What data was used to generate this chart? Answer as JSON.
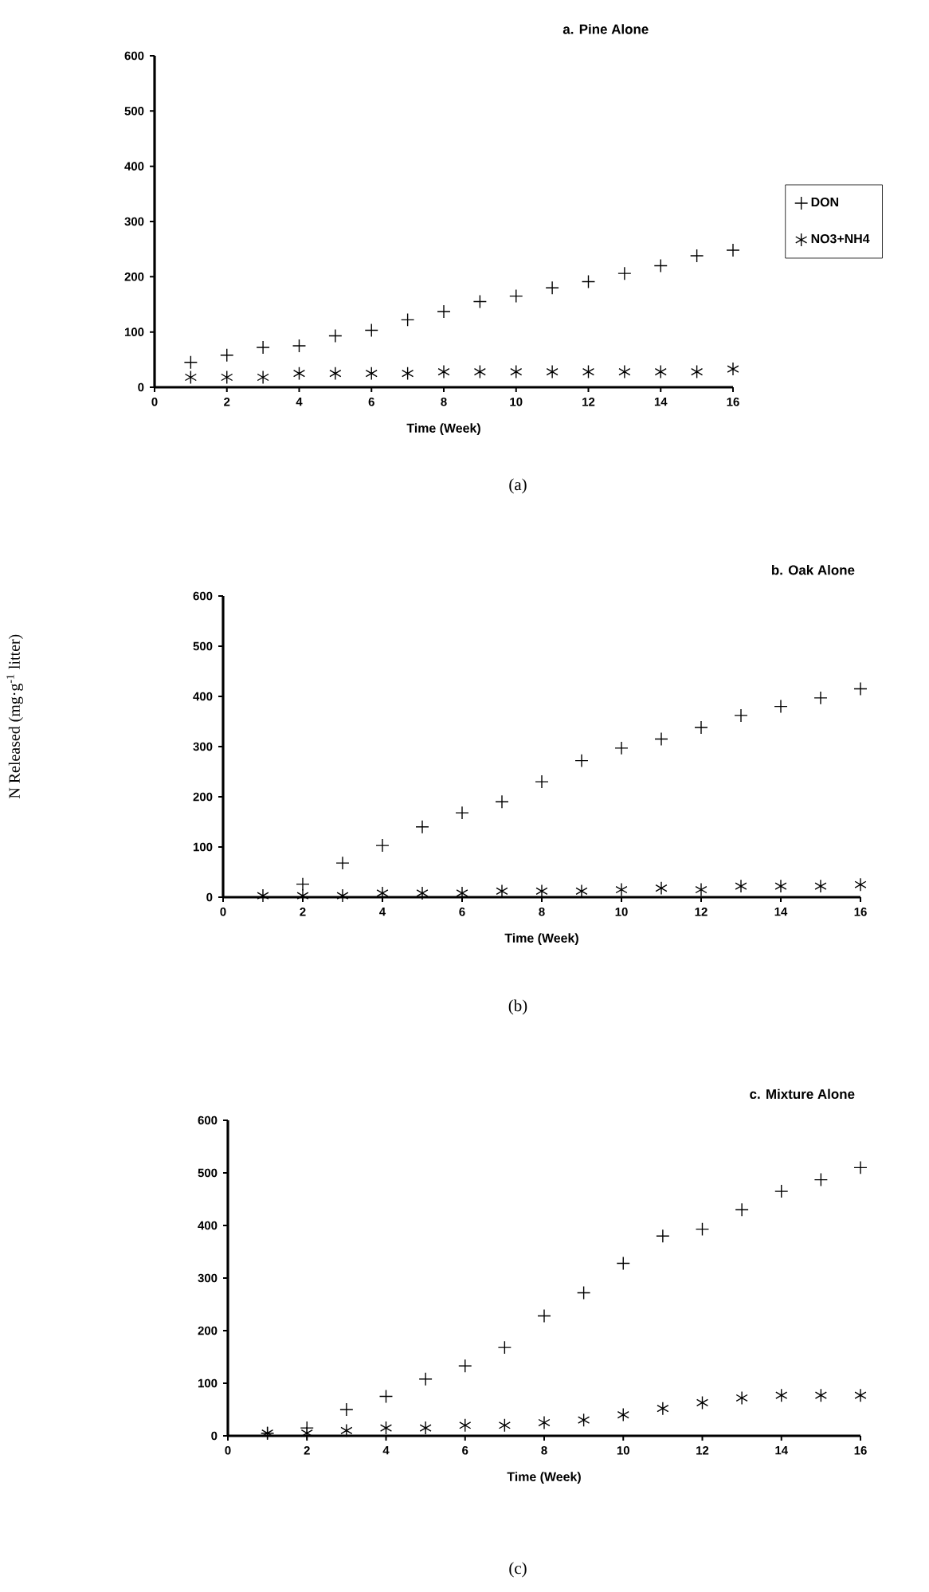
{
  "chart_data": [
    {
      "type": "scatter",
      "title": "a. Pine Alone",
      "xlabel": "Time (Week)",
      "x": [
        1,
        2,
        3,
        4,
        5,
        6,
        7,
        8,
        9,
        10,
        11,
        12,
        13,
        14,
        15,
        16
      ],
      "xlim": [
        0,
        16
      ],
      "ylim": [
        0,
        600
      ],
      "xticks": [
        0,
        2,
        4,
        6,
        8,
        10,
        12,
        14,
        16
      ],
      "yticks": [
        0,
        100,
        200,
        300,
        400,
        500,
        600
      ],
      "legend": "right",
      "annotations": [
        "(a)"
      ],
      "series": [
        {
          "name": "DON",
          "color": "#000000",
          "marker": "cross",
          "values": [
            45,
            58,
            72,
            75,
            93,
            103,
            122,
            137,
            155,
            165,
            180,
            191,
            206,
            220,
            238,
            248
          ]
        },
        {
          "name": "NO3+NH4",
          "color": "#000000",
          "values": [
            18,
            18,
            18,
            25,
            25,
            25,
            25,
            28,
            28,
            28,
            28,
            28,
            28,
            28,
            28,
            33
          ]
        }
      ]
    },
    {
      "type": "scatter",
      "title": "b. Oak Alone",
      "xlabel": "Time (Week)",
      "ylabel": "N Released (mg·g$^{-1}$ litter)",
      "x": [
        1,
        2,
        3,
        4,
        5,
        6,
        7,
        8,
        9,
        10,
        11,
        12,
        13,
        14,
        15,
        16
      ],
      "xlim": [
        0,
        16
      ],
      "ylim": [
        0,
        600
      ],
      "xticks": [
        0,
        2,
        4,
        6,
        8,
        10,
        12,
        14,
        16
      ],
      "yticks": [
        0,
        100,
        200,
        300,
        400,
        500,
        600
      ],
      "annotations": [
        "(b)"
      ],
      "series": [
        {
          "color": "#000000",
          "marker": "cross",
          "values": [
            null,
            26,
            68,
            103,
            140,
            168,
            190,
            230,
            272,
            297,
            315,
            338,
            362,
            380,
            397,
            415
          ]
        },
        {
          "color": "#000000",
          "values": [
            3,
            3,
            3,
            8,
            8,
            8,
            12,
            12,
            12,
            15,
            18,
            15,
            22,
            22,
            22,
            25
          ]
        }
      ]
    },
    {
      "type": "scatter",
      "title": "c. Mixture Alone",
      "xlabel": "Time (Week)",
      "x": [
        1,
        2,
        3,
        4,
        5,
        6,
        7,
        8,
        9,
        10,
        11,
        12,
        13,
        14,
        15,
        16
      ],
      "xlim": [
        0,
        16
      ],
      "ylim": [
        0,
        600
      ],
      "xticks": [
        0,
        2,
        4,
        6,
        8,
        10,
        12,
        14,
        16
      ],
      "yticks": [
        0,
        100,
        200,
        300,
        400,
        500,
        600
      ],
      "annotations": [
        "(c)"
      ],
      "series": [
        {
          "color": "#000000",
          "marker": "cross",
          "values": [
            5,
            15,
            50,
            75,
            108,
            133,
            168,
            228,
            272,
            328,
            380,
            393,
            430,
            465,
            487,
            510
          ]
        },
        {
          "color": "#000000",
          "values": [
            5,
            5,
            10,
            15,
            15,
            20,
            20,
            25,
            30,
            40,
            52,
            63,
            72,
            77,
            77,
            77
          ]
        }
      ]
    }
  ]
}
